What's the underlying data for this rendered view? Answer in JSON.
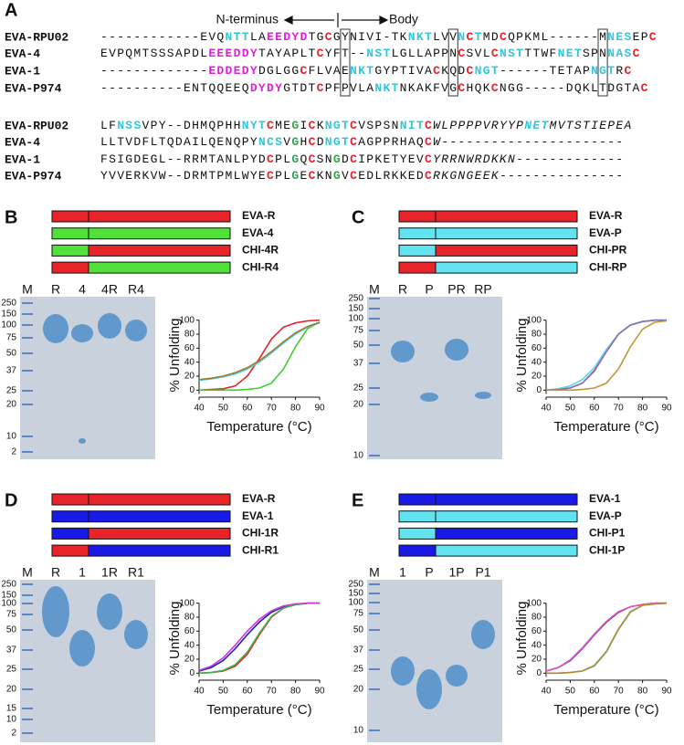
{
  "alignment": {
    "label": "A",
    "header": {
      "left": "N-terminus",
      "right": "Body"
    },
    "blocks": [
      [
        {
          "name": "EVA-RPU02",
          "segments": [
            "------------EVQ",
            {
              "text": "NTT",
              "color": "#36c5dc"
            },
            "LA",
            {
              "text": "EEDYD",
              "color": "#e020d8"
            },
            "TG",
            {
              "text": "C",
              "color": "#e8232a"
            },
            "GYNIVI-TK",
            {
              "text": "NKT",
              "color": "#36c5dc"
            },
            "LVV",
            {
              "text": "N",
              "color": "#36c5dc"
            },
            {
              "text": "C",
              "color": "#e8232a"
            },
            {
              "text": "T",
              "color": "#36c5dc"
            },
            "MD",
            {
              "text": "C",
              "color": "#e8232a"
            },
            "QPKML------M",
            {
              "text": "NES",
              "color": "#36c5dc"
            },
            "EP",
            {
              "text": "C",
              "color": "#e8232a"
            }
          ]
        },
        {
          "name": "EVA-4",
          "segments": [
            "EVPQMTSSSAPDL",
            {
              "text": "EEEDDY",
              "color": "#e020d8"
            },
            "TAYAPLT",
            {
              "text": "C",
              "color": "#e8232a"
            },
            "YFT--",
            {
              "text": "NST",
              "color": "#36c5dc"
            },
            "LGLLAPPN",
            {
              "text": "C",
              "color": "#e8232a"
            },
            "SVL",
            {
              "text": "C",
              "color": "#e8232a"
            },
            {
              "text": "NST",
              "color": "#36c5dc"
            },
            "TTWF",
            {
              "text": "NET",
              "color": "#36c5dc"
            },
            "SPN",
            {
              "text": "NAS",
              "color": "#36c5dc"
            },
            {
              "text": "C",
              "color": "#e8232a"
            }
          ]
        },
        {
          "name": "EVA-1",
          "segments": [
            "-------------",
            {
              "text": "EDDEDY",
              "color": "#e020d8"
            },
            "DGLGG",
            {
              "text": "C",
              "color": "#e8232a"
            },
            "FLVAE",
            {
              "text": "NKT",
              "color": "#36c5dc"
            },
            "GYPTIVA",
            {
              "text": "C",
              "color": "#e8232a"
            },
            "KQD",
            {
              "text": "C",
              "color": "#e8232a"
            },
            {
              "text": "NGT",
              "color": "#36c5dc"
            },
            "------TETAP",
            {
              "text": "NGT",
              "color": "#36c5dc"
            },
            "R",
            {
              "text": "C",
              "color": "#e8232a"
            }
          ]
        },
        {
          "name": "EVA-P974",
          "segments": [
            "----------ENTQQEEQ",
            {
              "text": "DYDY",
              "color": "#e020d8"
            },
            "GTDT",
            {
              "text": "C",
              "color": "#e8232a"
            },
            "PFPVLA",
            {
              "text": "NKT",
              "color": "#36c5dc"
            },
            "NKAKFVG",
            {
              "text": "C",
              "color": "#e8232a"
            },
            "HQK",
            {
              "text": "C",
              "color": "#e8232a"
            },
            "NGG-----DQKLTDGTA",
            {
              "text": "C",
              "color": "#e8232a"
            }
          ]
        }
      ],
      [
        {
          "name": "EVA-RPU02",
          "segments": [
            "LF",
            {
              "text": "NSS",
              "color": "#36c5dc"
            },
            "VPY--DHMQPHH",
            {
              "text": "NYT",
              "color": "#36c5dc"
            },
            {
              "text": "C",
              "color": "#e8232a"
            },
            "ME",
            {
              "text": "G",
              "color": "#2aa84a"
            },
            "I",
            {
              "text": "C",
              "color": "#e8232a"
            },
            "K",
            {
              "text": "NGT",
              "color": "#36c5dc"
            },
            {
              "text": "C",
              "color": "#e8232a"
            },
            "VSPSN",
            {
              "text": "NIT",
              "color": "#36c5dc"
            },
            {
              "text": "C",
              "color": "#e8232a"
            },
            {
              "text": "WLPPPPVRYYP",
              "italic": true
            },
            {
              "text": "NET",
              "color": "#36c5dc",
              "italic": true
            },
            {
              "text": "MVTSTIEPEA",
              "italic": true
            }
          ]
        },
        {
          "name": "EVA-4",
          "segments": [
            "LLTVDFLTQDAILQENQPY",
            {
              "text": "NCS",
              "color": "#36c5dc"
            },
            "V",
            {
              "text": "G",
              "color": "#2aa84a"
            },
            "H",
            {
              "text": "C",
              "color": "#e8232a"
            },
            "D",
            {
              "text": "NGT",
              "color": "#36c5dc"
            },
            {
              "text": "C",
              "color": "#e8232a"
            },
            "AGPPRHAQ",
            {
              "text": "C",
              "color": "#e8232a"
            },
            {
              "text": "W",
              "italic": true
            },
            "----------------------"
          ]
        },
        {
          "name": "EVA-1",
          "segments": [
            "FSIGDEGL--RRMTANLPYD",
            {
              "text": "C",
              "color": "#e8232a"
            },
            "PL",
            {
              "text": "G",
              "color": "#2aa84a"
            },
            "Q",
            {
              "text": "C",
              "color": "#e8232a"
            },
            "SN",
            {
              "text": "G",
              "color": "#2aa84a"
            },
            "D",
            {
              "text": "C",
              "color": "#e8232a"
            },
            "IPKETYEV",
            {
              "text": "C",
              "color": "#e8232a"
            },
            {
              "text": "YRRNWRDKKN",
              "italic": true
            },
            "-------------"
          ]
        },
        {
          "name": "EVA-P974",
          "segments": [
            "YVVERKVW--DRMTPMLWYE",
            {
              "text": "C",
              "color": "#e8232a"
            },
            "PL",
            {
              "text": "G",
              "color": "#2aa84a"
            },
            "E",
            {
              "text": "C",
              "color": "#e8232a"
            },
            "KN",
            {
              "text": "G",
              "color": "#2aa84a"
            },
            "V",
            {
              "text": "C",
              "color": "#e8232a"
            },
            "EDLRKKED",
            {
              "text": "C",
              "color": "#e8232a"
            },
            {
              "text": "RKGNGEEK",
              "italic": true
            },
            "---------------"
          ]
        }
      ]
    ]
  },
  "panels": [
    {
      "label": "B",
      "gel": {
        "lanes": [
          "M",
          "R",
          "4",
          "4R",
          "R4"
        ],
        "markers": [
          "250",
          "150",
          "100",
          "75",
          "50",
          "37",
          "25",
          "20",
          "10",
          "2"
        ]
      }
    },
    {
      "label": "C",
      "gel": {
        "lanes": [
          "M",
          "R",
          "P",
          "PR",
          "RP"
        ],
        "markers": [
          "250",
          "150",
          "100",
          "75",
          "50",
          "37",
          "25",
          "20",
          "10"
        ]
      }
    },
    {
      "label": "D",
      "gel": {
        "lanes": [
          "M",
          "R",
          "1",
          "1R",
          "R1"
        ],
        "markers": [
          "250",
          "150",
          "100",
          "75",
          "50",
          "37",
          "25",
          "20",
          "15",
          "10",
          "2"
        ]
      }
    },
    {
      "label": "E",
      "gel": {
        "lanes": [
          "M",
          "1",
          "P",
          "1P",
          "P1"
        ],
        "markers": [
          "250",
          "150",
          "100",
          "75",
          "50",
          "37",
          "25",
          "20",
          "10"
        ]
      }
    }
  ],
  "chart_data": [
    {
      "type": "line",
      "xlabel": "Temperature (°C)",
      "ylabel": "% Unfolding",
      "x": [
        40,
        45,
        50,
        55,
        60,
        65,
        70,
        75,
        80,
        85,
        90
      ],
      "xlim": [
        40,
        90
      ],
      "ylim": [
        -10,
        110
      ],
      "xticks": [
        40,
        50,
        60,
        70,
        80,
        90
      ],
      "yticks": [
        0,
        20,
        40,
        60,
        80,
        100
      ],
      "series": [
        {
          "name": "EVA-R",
          "color": "#e8232a",
          "construct": [
            "#e8232a",
            "#e8232a"
          ],
          "values": [
            0,
            1,
            2,
            6,
            20,
            45,
            73,
            90,
            96,
            99,
            100
          ]
        },
        {
          "name": "EVA-4",
          "color": "#3ccf2e",
          "construct": [
            "#52e03a",
            "#52e03a"
          ],
          "values": [
            0,
            0,
            0,
            0,
            1,
            3,
            10,
            30,
            62,
            88,
            97
          ]
        },
        {
          "name": "CHI-4R",
          "color": "#5ad5e6",
          "construct": [
            "#52e03a",
            "#e8232a"
          ],
          "values": [
            14,
            16,
            19,
            23,
            30,
            40,
            53,
            67,
            80,
            90,
            96
          ]
        },
        {
          "name": "CHI-R4",
          "color": "#9a7a2a",
          "construct": [
            "#e8232a",
            "#52e03a"
          ],
          "values": [
            15,
            17,
            20,
            25,
            32,
            42,
            55,
            69,
            82,
            91,
            97
          ]
        }
      ]
    },
    {
      "type": "line",
      "xlabel": "Temperature (°C)",
      "ylabel": "% Unfolding",
      "x": [
        40,
        45,
        50,
        55,
        60,
        65,
        70,
        75,
        80,
        85,
        90
      ],
      "xlim": [
        40,
        90
      ],
      "ylim": [
        -10,
        110
      ],
      "xticks": [
        40,
        50,
        60,
        70,
        80,
        90
      ],
      "yticks": [
        0,
        20,
        40,
        60,
        80,
        100
      ],
      "series": [
        {
          "name": "EVA-R",
          "color": "#e8232a",
          "construct": [
            "#e8232a",
            "#e8232a"
          ],
          "values": [
            0,
            1,
            3,
            10,
            28,
            55,
            80,
            93,
            98,
            100,
            100
          ]
        },
        {
          "name": "EVA-P",
          "color": "#5ad5e6",
          "construct": [
            "#63e3f0",
            "#63e3f0"
          ],
          "values": [
            0,
            2,
            6,
            15,
            32,
            58,
            80,
            93,
            98,
            100,
            100
          ]
        },
        {
          "name": "CHI-PR",
          "color": "#8a6fc1",
          "construct": [
            "#63e3f0",
            "#e8232a"
          ],
          "values": [
            0,
            1,
            3,
            10,
            27,
            55,
            80,
            93,
            98,
            100,
            100
          ]
        },
        {
          "name": "CHI-RP",
          "color": "#c2963a",
          "construct": [
            "#e8232a",
            "#63e3f0"
          ],
          "values": [
            0,
            0,
            0,
            1,
            3,
            10,
            30,
            62,
            87,
            97,
            99
          ]
        }
      ]
    },
    {
      "type": "line",
      "xlabel": "Temperature (°C)",
      "ylabel": "% Unfolding",
      "x": [
        40,
        45,
        50,
        55,
        60,
        65,
        70,
        75,
        80,
        85,
        90
      ],
      "xlim": [
        40,
        90
      ],
      "ylim": [
        -10,
        110
      ],
      "xticks": [
        40,
        50,
        60,
        70,
        80,
        90
      ],
      "yticks": [
        0,
        20,
        40,
        60,
        80,
        100
      ],
      "series": [
        {
          "name": "EVA-R",
          "color": "#e8232a",
          "construct": [
            "#e8232a",
            "#e8232a"
          ],
          "values": [
            0,
            1,
            3,
            10,
            27,
            55,
            80,
            93,
            98,
            100,
            100
          ]
        },
        {
          "name": "EVA-1",
          "color": "#1f1fd0",
          "construct": [
            "#1a1ae6",
            "#1a1ae6"
          ],
          "values": [
            3,
            8,
            18,
            35,
            55,
            73,
            87,
            95,
            98,
            100,
            100
          ]
        },
        {
          "name": "CHI-1R",
          "color": "#3cb44b",
          "construct": [
            "#1a1ae6",
            "#e8232a"
          ],
          "values": [
            0,
            1,
            4,
            12,
            30,
            57,
            81,
            93,
            98,
            100,
            100
          ]
        },
        {
          "name": "CHI-R1",
          "color": "#d03ad0",
          "construct": [
            "#e8232a",
            "#1a1ae6"
          ],
          "values": [
            4,
            10,
            22,
            40,
            60,
            77,
            89,
            96,
            99,
            100,
            100
          ]
        }
      ]
    },
    {
      "type": "line",
      "xlabel": "Temperature (°C)",
      "ylabel": "% Unfolding",
      "x": [
        40,
        45,
        50,
        55,
        60,
        65,
        70,
        75,
        80,
        85,
        90
      ],
      "xlim": [
        40,
        90
      ],
      "ylim": [
        -10,
        110
      ],
      "xticks": [
        40,
        50,
        60,
        70,
        80,
        90
      ],
      "yticks": [
        0,
        20,
        40,
        60,
        80,
        100
      ],
      "series": [
        {
          "name": "EVA-1",
          "color": "#1f1fd0",
          "construct": [
            "#1a1ae6",
            "#1a1ae6"
          ],
          "values": [
            3,
            8,
            18,
            35,
            55,
            73,
            87,
            95,
            98,
            100,
            100
          ]
        },
        {
          "name": "EVA-P",
          "color": "#5ad5e6",
          "construct": [
            "#63e3f0",
            "#63e3f0"
          ],
          "values": [
            0,
            0,
            1,
            3,
            10,
            30,
            62,
            87,
            97,
            99,
            100
          ]
        },
        {
          "name": "CHI-P1",
          "color": "#e85ab0",
          "construct": [
            "#63e3f0",
            "#1a1ae6"
          ],
          "values": [
            3,
            8,
            19,
            36,
            56,
            74,
            88,
            95,
            98,
            100,
            100
          ]
        },
        {
          "name": "CHI-1P",
          "color": "#b8862e",
          "construct": [
            "#1a1ae6",
            "#63e3f0"
          ],
          "values": [
            0,
            0,
            1,
            3,
            11,
            31,
            63,
            88,
            97,
            99,
            100
          ]
        }
      ]
    }
  ]
}
